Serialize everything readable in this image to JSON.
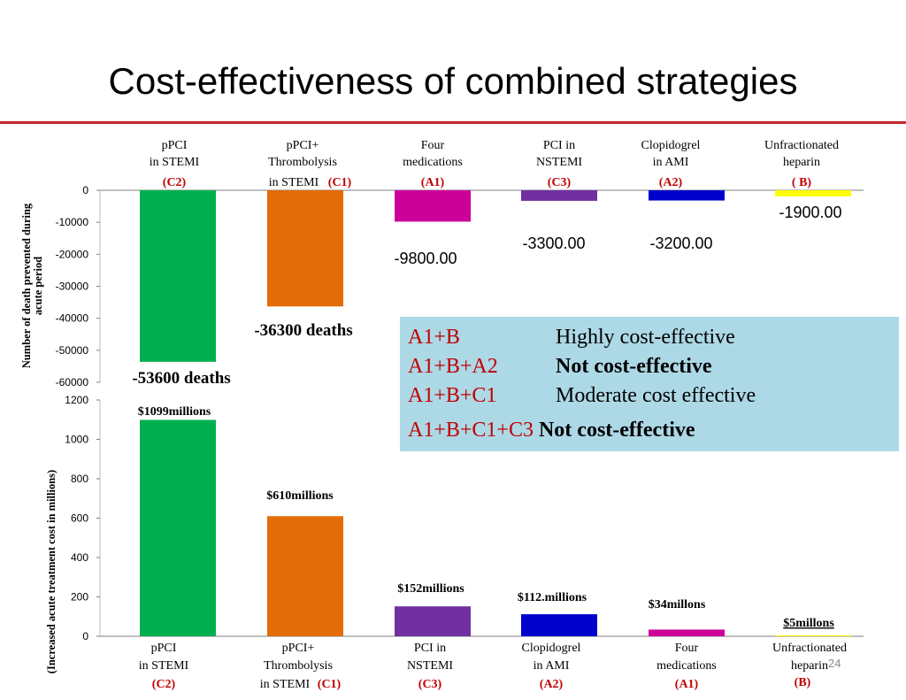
{
  "slide": {
    "title": "Cost-effectiveness of combined strategies",
    "page_number": "24"
  },
  "legend": [
    {
      "code": "A1+B",
      "description": "Highly cost-effective",
      "bold": false
    },
    {
      "code": "A1+B+A2",
      "description": "Not cost-effective",
      "bold": true
    },
    {
      "code": "A1+B+C1",
      "description": "Moderate cost effective",
      "bold": false
    },
    {
      "code": "A1+B+C1+C3",
      "description": "Not cost-effective",
      "bold": true
    }
  ],
  "chart_data": [
    {
      "type": "bar",
      "ylabel": "Number of death prevented during acute period",
      "ylim": [
        -60000,
        0
      ],
      "yticks": [
        "0",
        "-10000",
        "-20000",
        "-30000",
        "-40000",
        "-50000",
        "-60000"
      ],
      "categories": [
        {
          "line1": "pPCI",
          "line2": "in STEMI",
          "code": "(C2)"
        },
        {
          "line1": "pPCI+",
          "line2": "Thrombolysis",
          "line3": "in STEMI",
          "code": "(C1)"
        },
        {
          "line1": "Four",
          "line2": "medications",
          "code": "(A1)"
        },
        {
          "line1": "PCI in",
          "line2": "NSTEMI",
          "code": "(C3)"
        },
        {
          "line1": "Clopidogrel",
          "line2": "in AMI",
          "code": "(A2)"
        },
        {
          "line1": "Unfractionated",
          "line2": "heparin",
          "code": "( B)"
        }
      ],
      "values": [
        -53600,
        -36300,
        -9800,
        -3300,
        -3200,
        -1900
      ],
      "data_labels": [
        "-53600 deaths",
        "-36300 deaths",
        "-9800.00",
        "-3300.00",
        "-3200.00",
        "-1900.00"
      ],
      "colors": [
        "#00b050",
        "#e36c09",
        "#cc0099",
        "#7030a0",
        "#0000cc",
        "#ffff00"
      ],
      "grid": false
    },
    {
      "type": "bar",
      "ylabel": "(Increased acute treatment cost in millions)",
      "ylim": [
        0,
        1200
      ],
      "yticks": [
        "1200",
        "1000",
        "800",
        "600",
        "400",
        "200",
        "0"
      ],
      "categories": [
        {
          "line1": "pPCI",
          "line2": "in STEMI",
          "code": "(C2)"
        },
        {
          "line1": "pPCI+",
          "line2": "Thrombolysis",
          "line3": "in STEMI",
          "code": "(C1)"
        },
        {
          "line1": "PCI in",
          "line2": "NSTEMI",
          "code": "(C3)"
        },
        {
          "line1": "Clopidogrel",
          "line2": "in AMI",
          "code": "(A2)"
        },
        {
          "line1": "Four",
          "line2": "medications",
          "code": "(A1)"
        },
        {
          "line1": "Unfractionated",
          "line2": "heparin",
          "code": "(B)"
        }
      ],
      "values": [
        1099,
        610,
        152,
        112,
        34,
        5
      ],
      "data_labels": [
        "$1099millions",
        "$610millions",
        "$152millions",
        "$112.millions",
        "$34millons",
        "$5millons"
      ],
      "colors": [
        "#00b050",
        "#e36c09",
        "#7030a0",
        "#0000cc",
        "#cc0099",
        "#ffff00"
      ],
      "grid": false
    }
  ]
}
